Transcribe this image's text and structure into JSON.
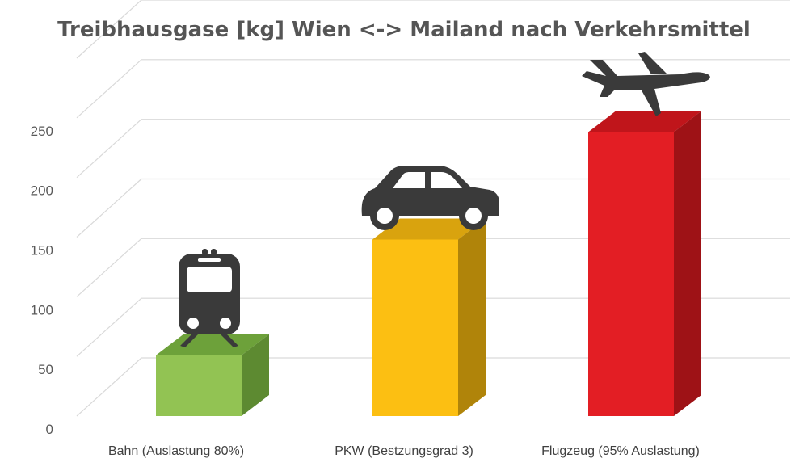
{
  "chart_data": {
    "type": "bar",
    "title": "Treibhausgase [kg] Wien <-> Mailand nach Verkehrsmittel",
    "xlabel": "",
    "ylabel": "",
    "categories": [
      "Bahn (Auslastung 80%)",
      "PKW (Bestzungsgrad 3)",
      "Flugzeug (95% Auslastung)"
    ],
    "values": [
      51,
      148,
      238
    ],
    "ylim": [
      0,
      300
    ],
    "yticks": [
      0,
      50,
      100,
      150,
      200,
      250
    ],
    "grid": true,
    "legend": "none",
    "colors": {
      "bars": [
        "#92c353",
        "#fcbf12",
        "#e31e24"
      ],
      "bar_tops": [
        "#6da13a",
        "#d9a30e",
        "#c0151b"
      ],
      "bar_sides": [
        "#5d8a31",
        "#b0840a",
        "#9e1216"
      ],
      "icons": "#3a3a3a",
      "gridlines": "#d9d9d9"
    },
    "icons": [
      "train-icon",
      "car-icon",
      "airplane-icon"
    ]
  }
}
